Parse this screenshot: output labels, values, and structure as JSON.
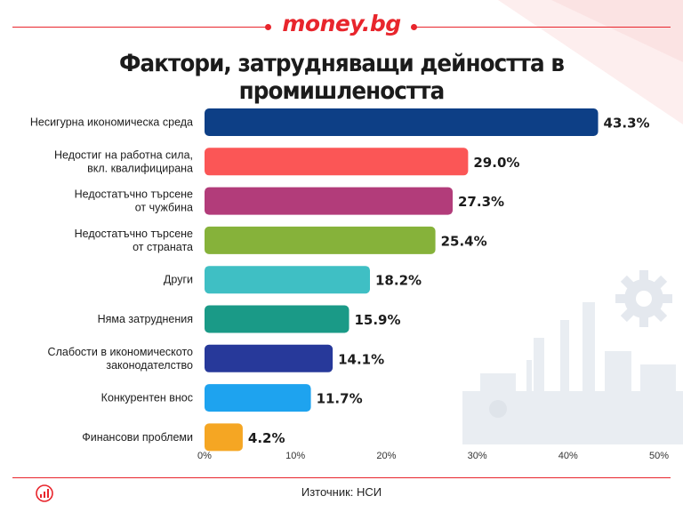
{
  "brand": {
    "name": "money.bg"
  },
  "title": "Фактори, затрудняващи дейността в промишлеността",
  "source": "Източник: НСИ",
  "colors": {
    "brand": "#e8252c",
    "bars": [
      "#0d3f86",
      "#fb5656",
      "#b23c7a",
      "#86b23a",
      "#3fbfc4",
      "#1a9a87",
      "#27399a",
      "#1ea3ef",
      "#f5a623"
    ]
  },
  "icons": [
    "logo-chart-icon",
    "gear-icon",
    "factory-icon"
  ],
  "chart_data": {
    "type": "bar",
    "orientation": "horizontal",
    "title": "Фактори, затрудняващи дейността в промишлеността",
    "categories": [
      [
        "Несигурна икономическа среда"
      ],
      [
        "Недостиг на работна сила,",
        "вкл. квалифицирана"
      ],
      [
        "Недостатъчно търсене",
        "от чужбина"
      ],
      [
        "Недостатъчно търсене",
        "от страната"
      ],
      [
        "Други"
      ],
      [
        "Няма затруднения"
      ],
      [
        "Слабости в икономическото",
        "законодателство"
      ],
      [
        "Конкурентен внос"
      ],
      [
        "Финансови проблеми"
      ]
    ],
    "values": [
      43.3,
      29.0,
      27.3,
      25.4,
      18.2,
      15.9,
      14.1,
      11.7,
      4.2
    ],
    "value_labels": [
      "43.3%",
      "29.0%",
      "27.3%",
      "25.4%",
      "18.2%",
      "15.9%",
      "14.1%",
      "11.7%",
      "4.2%"
    ],
    "xlim": [
      0,
      50
    ],
    "xticks": [
      "0%",
      "10%",
      "20%",
      "30%",
      "40%",
      "50%"
    ],
    "grid": false,
    "legend": "none"
  }
}
